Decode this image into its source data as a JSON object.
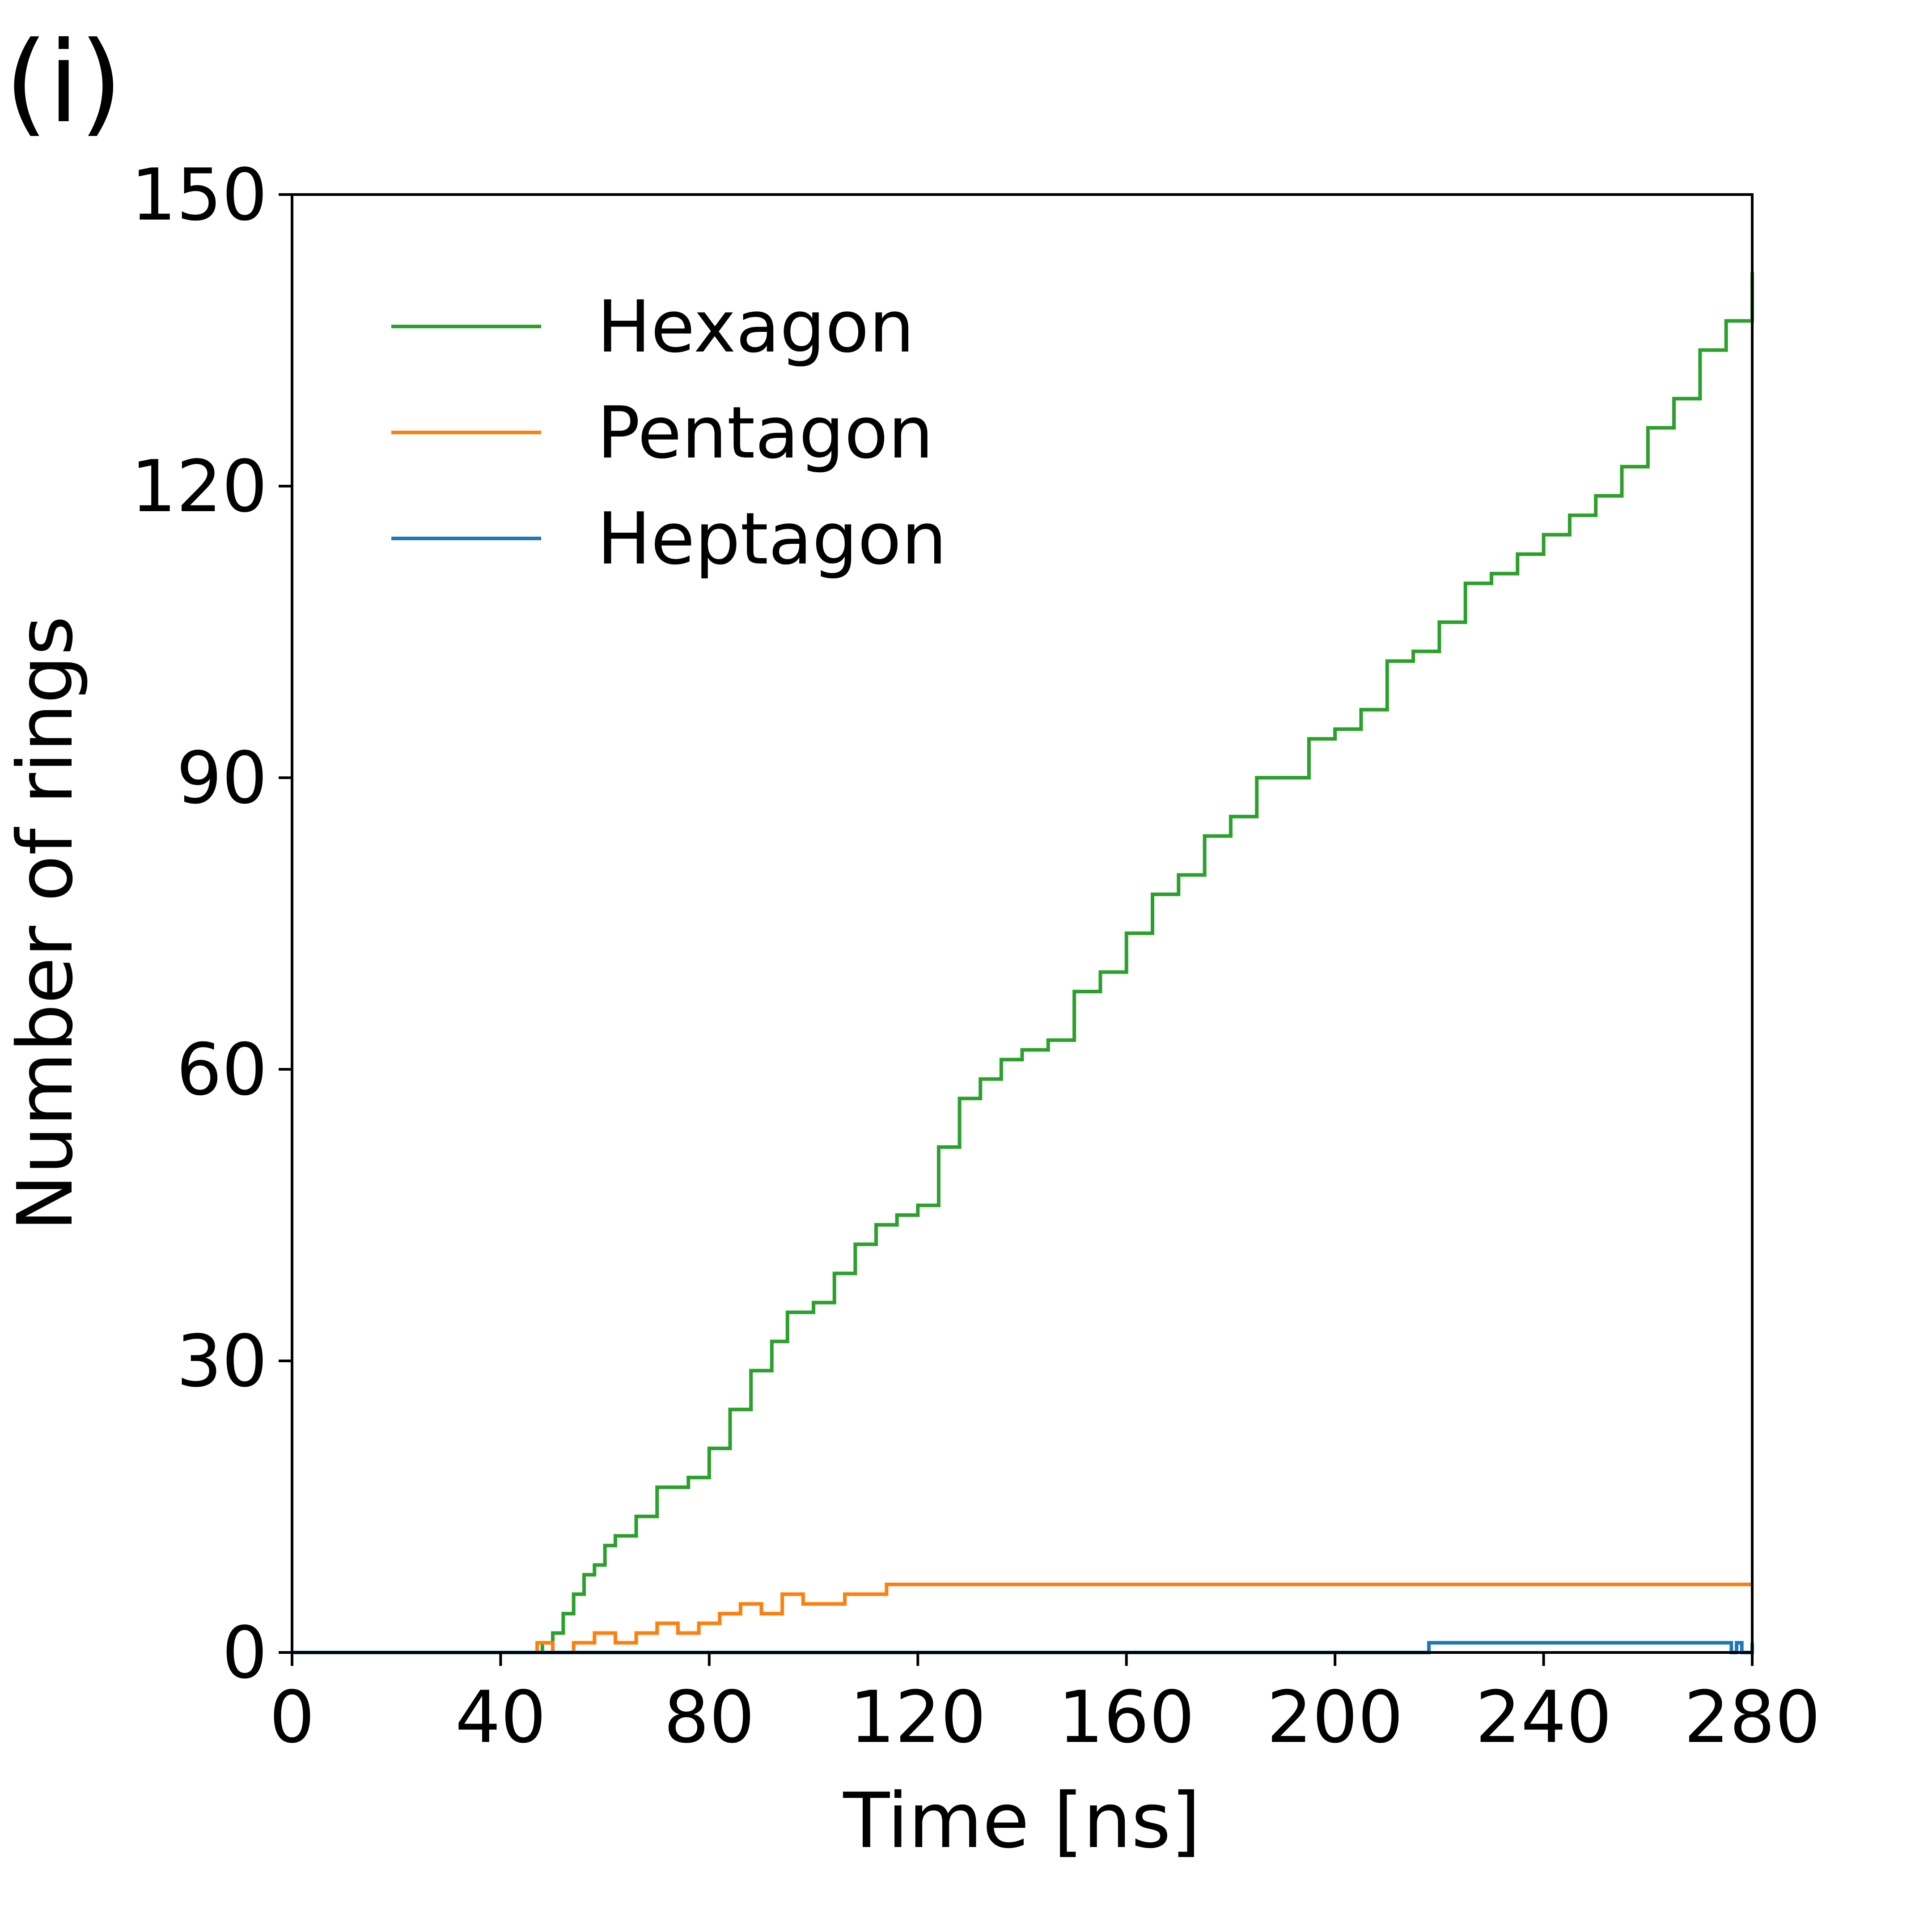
{
  "panel_label": "(i)",
  "chart_data": {
    "type": "line",
    "xlabel": "Time [ns]",
    "ylabel": "Number of rings",
    "xlim": [
      0,
      280
    ],
    "ylim": [
      0,
      150
    ],
    "xticks": [
      0,
      40,
      80,
      120,
      160,
      200,
      240,
      280
    ],
    "yticks": [
      0,
      30,
      60,
      90,
      120,
      150
    ],
    "grid": false,
    "legend_position": "upper-left",
    "series": [
      {
        "name": "Hexagon",
        "color": "#2ca02c",
        "step": true,
        "x": [
          0,
          43,
          48,
          50,
          52,
          54,
          56,
          58,
          60,
          62,
          66,
          70,
          73,
          76,
          80,
          84,
          88,
          92,
          95,
          100,
          104,
          108,
          112,
          116,
          120,
          124,
          128,
          132,
          136,
          140,
          145,
          150,
          155,
          160,
          165,
          170,
          175,
          180,
          185,
          190,
          195,
          200,
          205,
          210,
          215,
          220,
          225,
          230,
          235,
          240,
          245,
          250,
          255,
          260,
          265,
          270,
          275,
          280
        ],
        "y": [
          0,
          0,
          1,
          2,
          4,
          6,
          8,
          9,
          11,
          12,
          14,
          17,
          17,
          18,
          21,
          25,
          29,
          32,
          35,
          36,
          39,
          42,
          44,
          45,
          46,
          52,
          57,
          59,
          61,
          62,
          63,
          68,
          70,
          74,
          78,
          80,
          84,
          86,
          90,
          90,
          94,
          95,
          97,
          102,
          103,
          106,
          110,
          111,
          113,
          115,
          117,
          119,
          122,
          126,
          129,
          134,
          137,
          142
        ]
      },
      {
        "name": "Pentagon",
        "color": "#ff7f0e",
        "step": true,
        "x": [
          0,
          43,
          47,
          50,
          54,
          58,
          62,
          66,
          70,
          74,
          78,
          82,
          86,
          90,
          94,
          98,
          102,
          106,
          110,
          114,
          120,
          130,
          140,
          150,
          160,
          170,
          180,
          190,
          200,
          210,
          220,
          230,
          240,
          250,
          260,
          270,
          280
        ],
        "y": [
          0,
          0,
          1,
          0,
          1,
          2,
          1,
          2,
          3,
          2,
          3,
          4,
          5,
          4,
          6,
          5,
          5,
          6,
          6,
          7,
          7,
          7,
          7,
          7,
          7,
          7,
          7,
          7,
          7,
          7,
          7,
          7,
          7,
          7,
          7,
          7,
          7
        ]
      },
      {
        "name": "Heptagon",
        "color": "#1f77b4",
        "step": true,
        "x": [
          0,
          216,
          218,
          276,
          277,
          278,
          280
        ],
        "y": [
          0,
          0,
          1,
          0,
          1,
          0,
          1
        ]
      }
    ]
  }
}
